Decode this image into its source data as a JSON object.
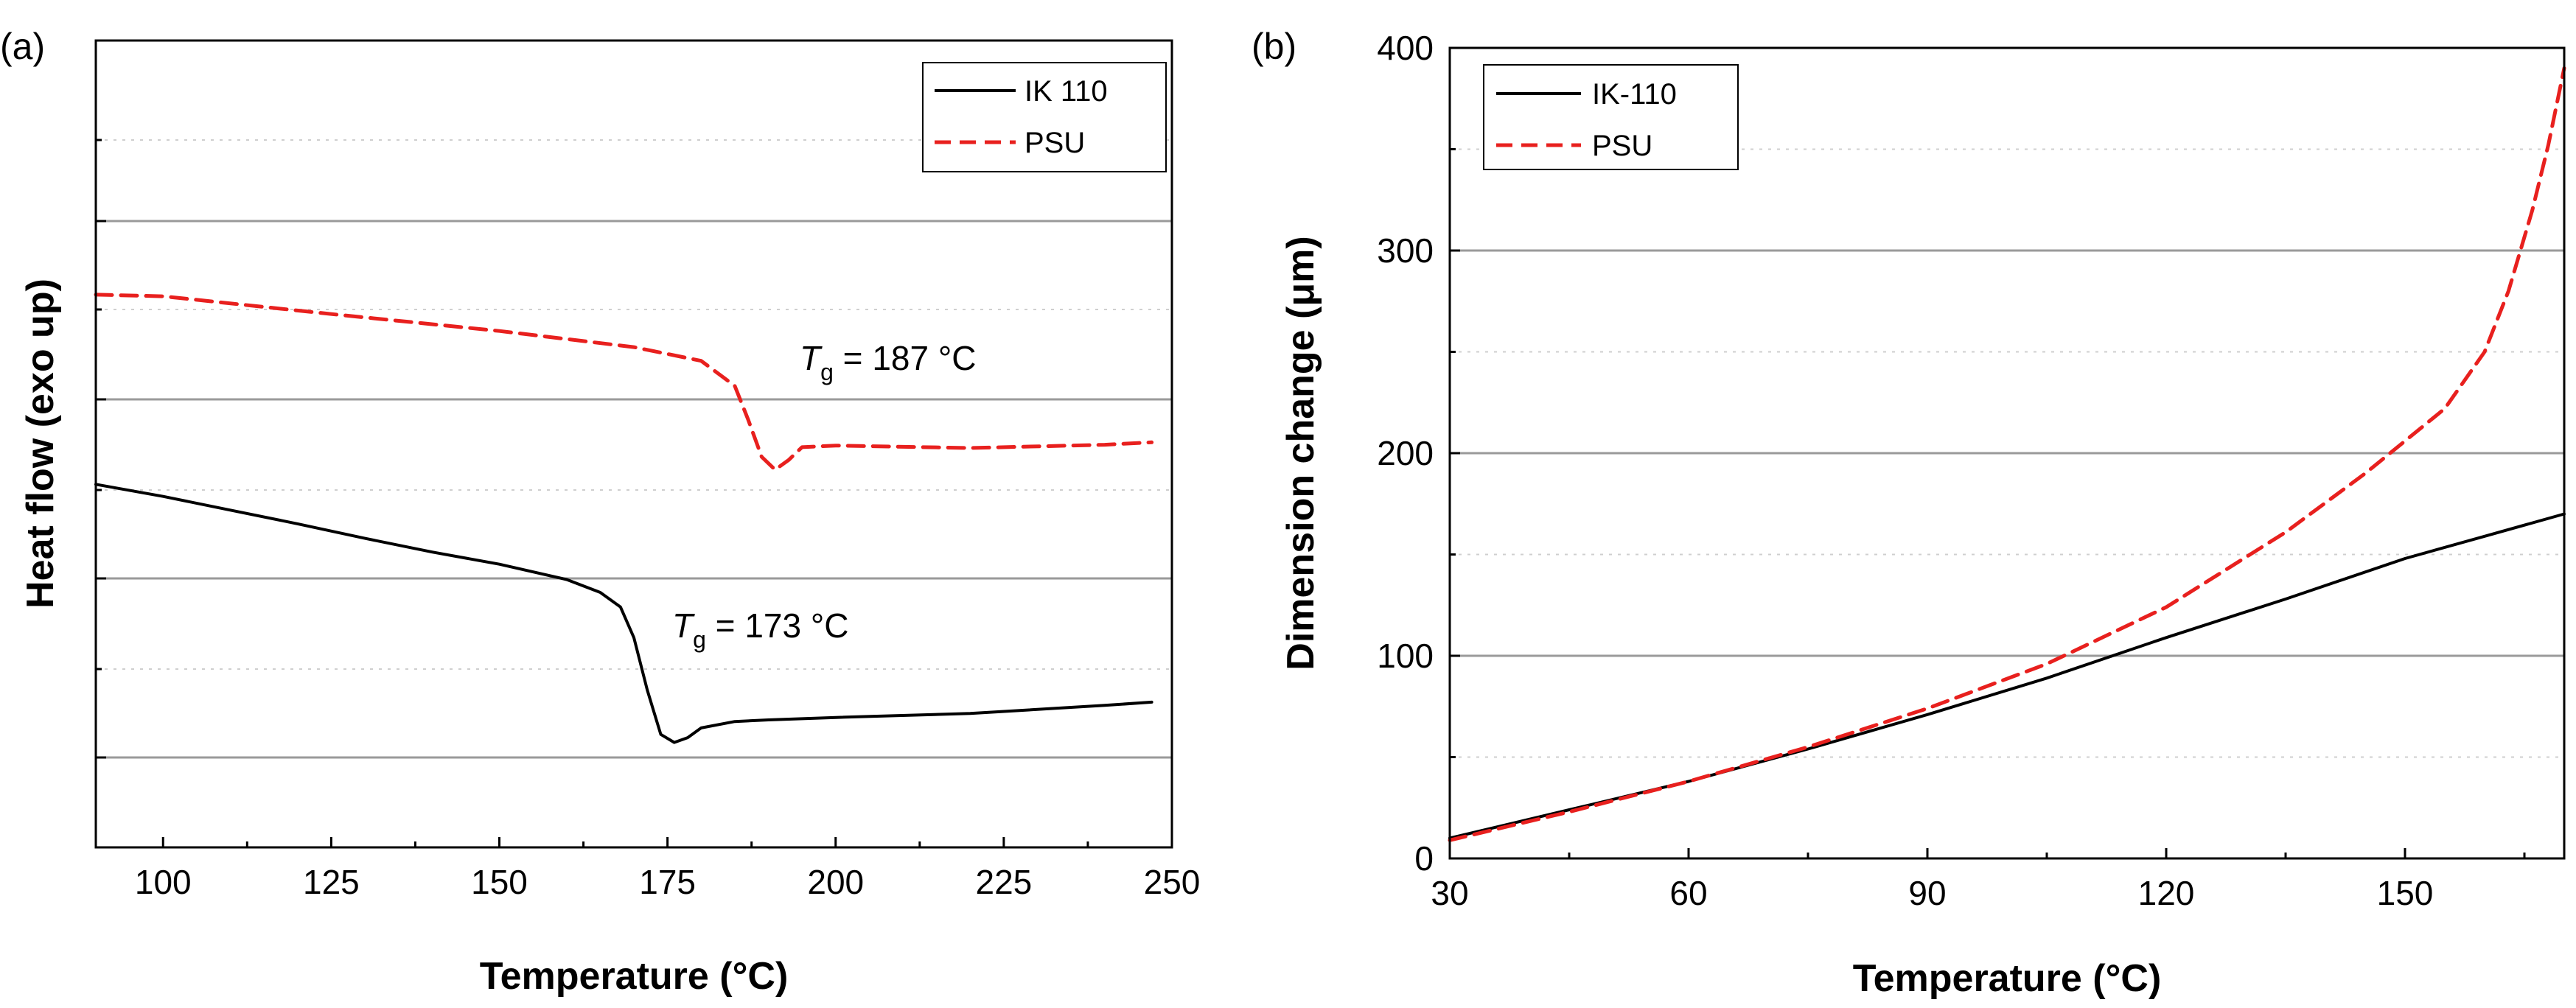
{
  "chart_data": [
    {
      "panel_label": "(a)",
      "type": "line",
      "xlabel": "Temperature (°C)",
      "ylabel": "Heat flow (exo up)",
      "xlim": [
        90,
        250
      ],
      "ylim": [
        0,
        100
      ],
      "x_ticks": [
        100,
        125,
        150,
        175,
        200,
        225,
        250
      ],
      "y_tick_labels_shown": false,
      "grid": true,
      "legend_position": "top-right",
      "series": [
        {
          "name": "IK 110",
          "color": "#000000",
          "style": "solid",
          "x": [
            90,
            100,
            110,
            120,
            130,
            140,
            150,
            160,
            165,
            168,
            170,
            172,
            174,
            176,
            178,
            180,
            185,
            190,
            200,
            220,
            240,
            247
          ],
          "y": [
            45,
            43.5,
            41.8,
            40.1,
            38.3,
            36.6,
            35.1,
            33.2,
            31.6,
            29.8,
            26,
            19.5,
            14,
            13,
            13.6,
            14.8,
            15.6,
            15.8,
            16.1,
            16.6,
            17.6,
            18
          ]
        },
        {
          "name": "PSU",
          "color": "#e8201e",
          "style": "dashed",
          "x": [
            90,
            100,
            125,
            150,
            170,
            180,
            185,
            187,
            189,
            191,
            193,
            195,
            200,
            220,
            240,
            247
          ],
          "y": [
            68.5,
            68.3,
            66.1,
            64,
            62,
            60.3,
            57.2,
            53,
            48.4,
            46.8,
            48,
            49.6,
            49.8,
            49.5,
            49.9,
            50.2
          ]
        }
      ],
      "annotations": [
        {
          "symbol": "T",
          "subscript": "g",
          "text": " = 187 °C",
          "x": 184,
          "y": 55.5
        },
        {
          "symbol": "T",
          "subscript": "g",
          "text": " = 173 °C",
          "x": 175,
          "y": 24
        }
      ]
    },
    {
      "panel_label": "(b)",
      "type": "line",
      "xlabel": "Temperature (°C)",
      "ylabel": "Dimension change (μm)",
      "xlim": [
        30,
        170
      ],
      "ylim": [
        0,
        400
      ],
      "x_ticks": [
        30,
        60,
        90,
        120,
        150
      ],
      "y_ticks": [
        0,
        100,
        200,
        300,
        400
      ],
      "grid": true,
      "legend_position": "top-left",
      "series": [
        {
          "name": "IK-110",
          "color": "#000000",
          "style": "solid",
          "x": [
            30,
            45,
            60,
            75,
            90,
            105,
            120,
            135,
            150,
            160,
            170
          ],
          "y": [
            10,
            24,
            38,
            54,
            71,
            89,
            109,
            128,
            148,
            159,
            170
          ]
        },
        {
          "name": "PSU",
          "color": "#e8201e",
          "style": "dashed",
          "x": [
            30,
            45,
            60,
            75,
            90,
            105,
            120,
            135,
            145,
            150,
            155,
            160,
            163,
            166,
            168,
            170
          ],
          "y": [
            9,
            23,
            38,
            55,
            74,
            96,
            124,
            161,
            190,
            206,
            222,
            250,
            280,
            320,
            352,
            390
          ]
        }
      ]
    }
  ]
}
